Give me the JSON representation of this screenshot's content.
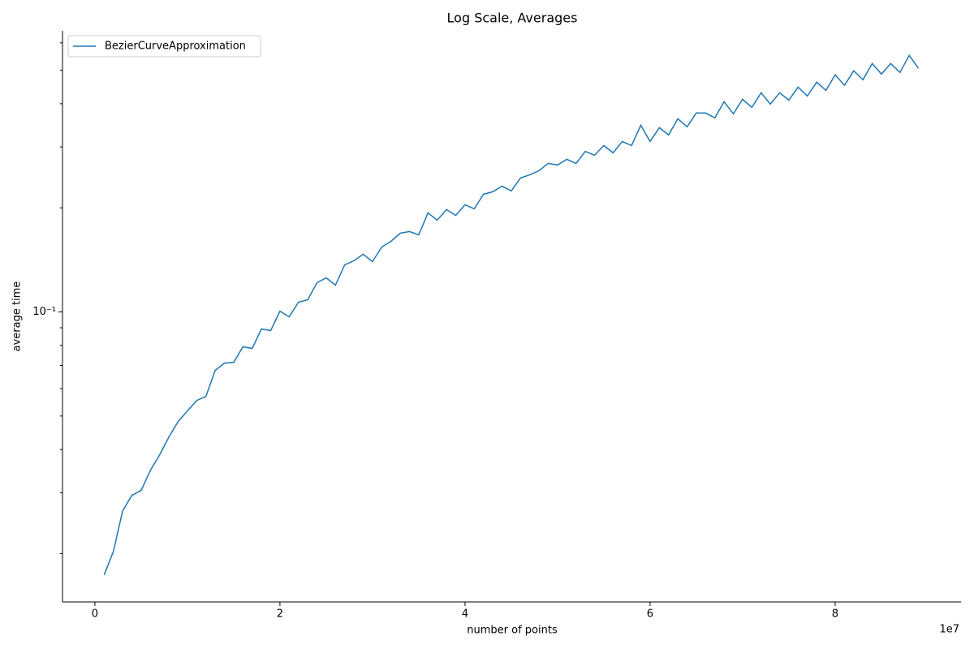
{
  "chart_data": {
    "type": "line",
    "title": "Log Scale, Averages",
    "xlabel": "number of points",
    "ylabel": "average time",
    "x_offset_label": "1e7",
    "yscale": "log",
    "grid": false,
    "legend": "upper left",
    "xlim": [
      -3500000,
      93600000
    ],
    "ylim": [
      0.0145,
      0.65
    ],
    "xticks": [
      0,
      {
        "value": 20000000,
        "label": "2"
      },
      {
        "value": 40000000,
        "label": "4"
      },
      {
        "value": 60000000,
        "label": "6"
      },
      {
        "value": 80000000,
        "label": "8"
      }
    ],
    "yticks": [
      {
        "value": 0.1,
        "label": "10⁻¹"
      }
    ],
    "yminorticks": [
      0.02,
      0.03,
      0.04,
      0.05,
      0.06,
      0.07,
      0.08,
      0.09,
      0.2,
      0.3,
      0.4,
      0.5,
      0.6
    ],
    "x": [
      1000000,
      2000000,
      3000000,
      4000000,
      5000000,
      6000000,
      7000000,
      8000000,
      9000000,
      10000000,
      11000000,
      12000000,
      13000000,
      14000000,
      15000000,
      16000000,
      17000000,
      18000000,
      19000000,
      20000000,
      21000000,
      22000000,
      23000000,
      24000000,
      25000000,
      26000000,
      27000000,
      28000000,
      29000000,
      30000000,
      31000000,
      32000000,
      33000000,
      34000000,
      35000000,
      36000000,
      37000000,
      38000000,
      39000000,
      40000000,
      41000000,
      42000000,
      43000000,
      44000000,
      45000000,
      46000000,
      47000000,
      48000000,
      49000000,
      50000000,
      51000000,
      52000000,
      53000000,
      54000000,
      55000000,
      56000000,
      57000000,
      58000000,
      59000000,
      60000000,
      61000000,
      62000000,
      63000000,
      64000000,
      65000000,
      66000000,
      67000000,
      68000000,
      69000000,
      70000000,
      71000000,
      72000000,
      73000000,
      74000000,
      75000000,
      76000000,
      77000000,
      78000000,
      79000000,
      80000000,
      81000000,
      82000000,
      83000000,
      84000000,
      85000000,
      86000000,
      87000000,
      88000000,
      89000000
    ],
    "series": [
      {
        "name": "BezierCurveApproximation",
        "color": "#1f77b4",
        "values": [
          0.01736,
          0.0203,
          0.0266,
          0.02948,
          0.03045,
          0.03485,
          0.03862,
          0.0435,
          0.0482,
          0.05171,
          0.05546,
          0.05698,
          0.06776,
          0.07113,
          0.07152,
          0.07929,
          0.07843,
          0.08929,
          0.08831,
          0.1005,
          0.09681,
          0.1067,
          0.1084,
          0.1215,
          0.1255,
          0.1195,
          0.1368,
          0.1406,
          0.1468,
          0.1398,
          0.1541,
          0.16,
          0.1689,
          0.1708,
          0.1671,
          0.1934,
          0.1842,
          0.1976,
          0.1902,
          0.2041,
          0.1987,
          0.219,
          0.2226,
          0.2311,
          0.2238,
          0.244,
          0.2493,
          0.2561,
          0.2689,
          0.266,
          0.2763,
          0.2689,
          0.2915,
          0.2838,
          0.3028,
          0.2884,
          0.3112,
          0.3028,
          0.3467,
          0.3112,
          0.3411,
          0.3249,
          0.362,
          0.343,
          0.376,
          0.376,
          0.364,
          0.4055,
          0.374,
          0.4121,
          0.3904,
          0.4303,
          0.399,
          0.4303,
          0.4099,
          0.4469,
          0.4211,
          0.4617,
          0.4373,
          0.4847,
          0.4518,
          0.498,
          0.4693,
          0.5228,
          0.4873,
          0.5228,
          0.4927,
          0.5519,
          0.5061
        ]
      }
    ]
  }
}
